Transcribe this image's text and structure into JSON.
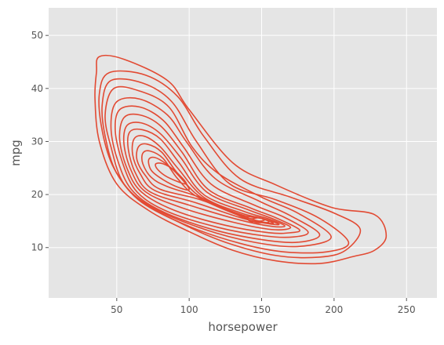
{
  "chart_data": {
    "type": "contour",
    "title": "",
    "xlabel": "horsepower",
    "ylabel": "mpg",
    "xlim": [
      3,
      271
    ],
    "ylim": [
      0.5,
      55.2
    ],
    "x_ticks": [
      50,
      100,
      150,
      200,
      250
    ],
    "y_ticks": [
      10,
      20,
      30,
      40,
      50
    ],
    "grid": true,
    "background": "#E5E5E5",
    "grid_color": "#FFFFFF",
    "line_color": "#E24A33",
    "series": [
      {
        "kind": "kde-contour",
        "peaks": [
          {
            "x": 88,
            "y": 25
          },
          {
            "x": 148,
            "y": 15
          }
        ],
        "levels": [
          [
            [
              236,
              12.2
            ],
            [
              228,
              16.2
            ],
            [
              198,
              17.6
            ],
            [
              160,
              21.8
            ],
            [
              130,
              26
            ],
            [
              100,
              36
            ],
            [
              85,
              41.5
            ],
            [
              55,
              45.5
            ],
            [
              38,
              46
            ],
            [
              36,
              43
            ],
            [
              35,
              38
            ],
            [
              38,
              30
            ],
            [
              50,
              22
            ],
            [
              72,
              17
            ],
            [
              100,
              13
            ],
            [
              130,
              9.5
            ],
            [
              160,
              7.5
            ],
            [
              190,
              7
            ],
            [
              213,
              8.3
            ],
            [
              228,
              9.5
            ]
          ],
          [
            [
              218,
              13.5
            ],
            [
              200,
              16.5
            ],
            [
              170,
              19.5
            ],
            [
              135,
              23
            ],
            [
              110,
              31
            ],
            [
              92,
              38.5
            ],
            [
              70,
              42.5
            ],
            [
              45,
              43
            ],
            [
              38,
              39
            ],
            [
              40,
              32
            ],
            [
              48,
              25
            ],
            [
              65,
              19
            ],
            [
              95,
              14.5
            ],
            [
              125,
              11
            ],
            [
              160,
              8.5
            ],
            [
              190,
              8.2
            ],
            [
              208,
              9.5
            ]
          ],
          [
            [
              210,
              11
            ],
            [
              190,
              15.5
            ],
            [
              160,
              19
            ],
            [
              128,
              22
            ],
            [
              105,
              30
            ],
            [
              88,
              37.5
            ],
            [
              68,
              41
            ],
            [
              46,
              41.5
            ],
            [
              40,
              37
            ],
            [
              42,
              31
            ],
            [
              50,
              24
            ],
            [
              68,
              18.5
            ],
            [
              100,
              14
            ],
            [
              135,
              10.8
            ],
            [
              165,
              9.2
            ],
            [
              195,
              9.2
            ]
          ],
          [
            [
              198,
              12
            ],
            [
              175,
              16.5
            ],
            [
              150,
              19.5
            ],
            [
              120,
              24
            ],
            [
              102,
              29
            ],
            [
              86,
              36.5
            ],
            [
              66,
              39.5
            ],
            [
              48,
              40
            ],
            [
              42,
              35
            ],
            [
              46,
              29
            ],
            [
              55,
              22
            ],
            [
              75,
              17.5
            ],
            [
              110,
              13.5
            ],
            [
              145,
              11
            ],
            [
              175,
              10.2
            ]
          ],
          [
            [
              190,
              12.5
            ],
            [
              170,
              16
            ],
            [
              148,
              18.8
            ],
            [
              118,
              23
            ],
            [
              98,
              30
            ],
            [
              85,
              35
            ],
            [
              66,
              38
            ],
            [
              50,
              37.5
            ],
            [
              46,
              33
            ],
            [
              50,
              27
            ],
            [
              60,
              21
            ],
            [
              80,
              17
            ],
            [
              115,
              13.5
            ],
            [
              150,
              11.5
            ],
            [
              175,
              11
            ]
          ],
          [
            [
              182,
              13
            ],
            [
              165,
              15.8
            ],
            [
              145,
              18
            ],
            [
              115,
              22
            ],
            [
              96,
              29
            ],
            [
              82,
              34
            ],
            [
              66,
              36.5
            ],
            [
              52,
              36
            ],
            [
              49,
              32
            ],
            [
              54,
              26
            ],
            [
              64,
              20.5
            ],
            [
              85,
              16.8
            ],
            [
              120,
              13.8
            ],
            [
              152,
              12.2
            ],
            [
              172,
              12
            ]
          ],
          [
            [
              176,
              13.4
            ],
            [
              160,
              15.6
            ],
            [
              142,
              17.5
            ],
            [
              113,
              21
            ],
            [
              95,
              28
            ],
            [
              80,
              33
            ],
            [
              66,
              35
            ],
            [
              55,
              34.5
            ],
            [
              52,
              30.5
            ],
            [
              57,
              25
            ],
            [
              67,
              20.5
            ],
            [
              90,
              17
            ],
            [
              125,
              14.2
            ],
            [
              155,
              12.8
            ],
            [
              170,
              12.8
            ]
          ],
          [
            [
              170,
              13.8
            ],
            [
              157,
              15.5
            ],
            [
              140,
              17.2
            ],
            [
              112,
              20.5
            ],
            [
              94,
              27
            ],
            [
              80,
              31.5
            ],
            [
              67,
              33.5
            ],
            [
              57,
              33
            ],
            [
              55,
              29.5
            ],
            [
              60,
              24.5
            ],
            [
              70,
              20.5
            ],
            [
              95,
              17.5
            ],
            [
              130,
              14.8
            ],
            [
              157,
              13.4
            ]
          ],
          [
            [
              166,
              14.1
            ],
            [
              155,
              15.4
            ],
            [
              138,
              16.8
            ],
            [
              110,
              20
            ],
            [
              93,
              26
            ],
            [
              80,
              30.5
            ],
            [
              68,
              32.2
            ],
            [
              59,
              31.8
            ],
            [
              58,
              28.5
            ],
            [
              63,
              24
            ],
            [
              73,
              20.5
            ],
            [
              100,
              18
            ],
            [
              135,
              15.2
            ],
            [
              157,
              14
            ]
          ],
          [
            [
              162,
              14.4
            ],
            [
              152,
              15.4
            ],
            [
              136,
              16.5
            ],
            [
              110,
              19.5
            ],
            [
              92,
              25
            ],
            [
              80,
              29
            ],
            [
              69,
              31
            ],
            [
              62,
              30.5
            ],
            [
              61,
              27.5
            ],
            [
              66,
              24
            ],
            [
              76,
              20.8
            ],
            [
              104,
              18.5
            ],
            [
              137,
              15.5
            ],
            [
              155,
              14.5
            ]
          ],
          [
            [
              158,
              14.6
            ],
            [
              150,
              15.5
            ],
            [
              136,
              16.2
            ],
            [
              108,
              19.5
            ],
            [
              92,
              24
            ],
            [
              81,
              28
            ],
            [
              71,
              29.5
            ],
            [
              65,
              29
            ],
            [
              64,
              26.5
            ],
            [
              70,
              23.5
            ],
            [
              80,
              21
            ],
            [
              108,
              19
            ],
            [
              139,
              15.7
            ],
            [
              153,
              14.7
            ]
          ],
          [
            [
              155,
              14.9
            ],
            [
              148,
              15.6
            ],
            [
              138,
              15.7
            ],
            [
              106,
              19.5
            ],
            [
              92,
              23
            ],
            [
              82,
              26.8
            ],
            [
              73,
              28.2
            ],
            [
              68,
              27.8
            ],
            [
              68,
              25.8
            ],
            [
              74,
              23.2
            ],
            [
              85,
              21.5
            ],
            [
              110,
              19.2
            ],
            [
              141,
              15.2
            ],
            [
              151,
              14.7
            ]
          ],
          [
            [
              152,
              15.2
            ],
            [
              146,
              15.8
            ],
            [
              140,
              15.7
            ],
            [
              143,
              14.9
            ]
          ],
          [
            [
              100,
              21
            ],
            [
              93,
              23.5
            ],
            [
              84,
              25.8
            ],
            [
              76,
              27
            ],
            [
              72,
              26.5
            ],
            [
              74,
              24.5
            ],
            [
              82,
              22.8
            ],
            [
              93,
              21.3
            ]
          ],
          [
            [
              98,
              22
            ],
            [
              90,
              24.5
            ],
            [
              82,
              25.8
            ],
            [
              77,
              25.8
            ],
            [
              78,
              24.8
            ],
            [
              85,
              23.3
            ]
          ]
        ]
      }
    ]
  }
}
